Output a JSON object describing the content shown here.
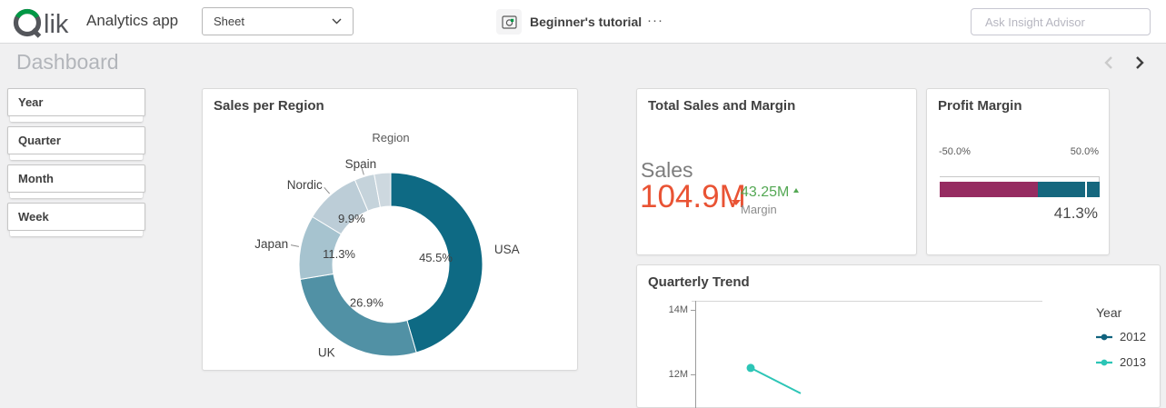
{
  "topbar": {
    "logo": {
      "brand": "Qlik",
      "suffix": "lik"
    },
    "app_name": "Analytics app",
    "sheet_selector": {
      "value": "Sheet"
    },
    "tutorial_label": "Beginner's tutorial",
    "more_menu": "···",
    "search_placeholder": "Ask Insight Advisor"
  },
  "sheet_header": {
    "title": "Dashboard"
  },
  "filters": [
    {
      "label": "Year"
    },
    {
      "label": "Quarter"
    },
    {
      "label": "Month"
    },
    {
      "label": "Week"
    }
  ],
  "cards": {
    "sales_region": {
      "title": "Sales per Region",
      "dimension_label": "Region"
    },
    "kpi": {
      "title": "Total Sales and Margin",
      "primary_label": "Sales",
      "primary_value": "104.9M",
      "primary_color": "#e95334",
      "secondary_value": "43.25M",
      "secondary_color": "#54a854",
      "secondary_label": "Margin"
    },
    "gauge": {
      "title": "Profit Margin"
    },
    "trend": {
      "title": "Quarterly Trend"
    }
  },
  "chart_data": [
    {
      "type": "pie",
      "subtype": "donut",
      "title": "Sales per Region",
      "dimension": "Region",
      "slices": [
        {
          "label": "USA",
          "value": 45.5,
          "pct_label": "45.5%",
          "color": "#0e6a84",
          "leader": false
        },
        {
          "label": "UK",
          "value": 26.9,
          "pct_label": "26.9%",
          "color": "#5191a5",
          "leader": false
        },
        {
          "label": "Japan",
          "value": 11.3,
          "pct_label": "11.3%",
          "color": "#a6c3cf",
          "leader": true
        },
        {
          "label": "Nordic",
          "value": 9.9,
          "pct_label": "9.9%",
          "color": "#bccdd7",
          "leader": true
        },
        {
          "label": "Spain",
          "value": 3.5,
          "pct_label": null,
          "color": "#c5d3db",
          "leader": true
        },
        {
          "label": null,
          "value": 2.9,
          "pct_label": null,
          "color": "#cdd8df",
          "leader": false
        }
      ]
    },
    {
      "type": "bar",
      "subtype": "bullet-gauge",
      "title": "Profit Margin",
      "min": -50,
      "max": 50,
      "value": 41.3,
      "value_label": "41.3%",
      "axis_labels": [
        "-50.0%",
        "50.0%"
      ],
      "segments": [
        {
          "from": -50,
          "to": 11.4,
          "color": "#962c61"
        },
        {
          "from": 11.4,
          "to": 50,
          "color": "#15677e"
        }
      ],
      "marker_color": "#ffffff"
    },
    {
      "type": "line",
      "title": "Quarterly Trend",
      "y_ticks": [
        "14M",
        "12M"
      ],
      "legend_title": "Year",
      "legend_position": "right",
      "series": [
        {
          "name": "2012",
          "color": "#11637e",
          "visible_points_m": []
        },
        {
          "name": "2013",
          "color": "#2cc5b6",
          "visible_points_m": [
            12.2
          ]
        }
      ],
      "note_visible_range_m": [
        12,
        14
      ]
    }
  ]
}
